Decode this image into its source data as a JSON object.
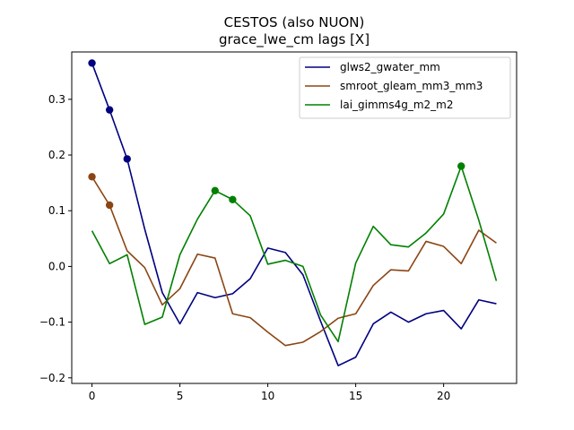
{
  "chart_data": {
    "type": "line",
    "title": "CESTOS (also NUON)",
    "subtitle": "grace_lwe_cm lags [X]",
    "xlabel": "",
    "ylabel": "",
    "xlim": [
      -1.15,
      24.15
    ],
    "ylim": [
      -0.21,
      0.385
    ],
    "x_ticks": [
      0,
      5,
      10,
      15,
      20
    ],
    "x_tick_labels": [
      "0",
      "5",
      "10",
      "15",
      "20"
    ],
    "y_ticks": [
      -0.2,
      -0.1,
      0.0,
      0.1,
      0.2,
      0.3
    ],
    "y_tick_labels": [
      "−0.2",
      "−0.1",
      "0.0",
      "0.1",
      "0.2",
      "0.3"
    ],
    "grid": false,
    "legend_position": "upper-right",
    "x": [
      0,
      1,
      2,
      3,
      4,
      5,
      6,
      7,
      8,
      9,
      10,
      11,
      12,
      13,
      14,
      15,
      16,
      17,
      18,
      19,
      20,
      21,
      22,
      23
    ],
    "series": [
      {
        "name": "glws2_gwater_mm",
        "color": "#000080",
        "values": [
          0.365,
          0.281,
          0.193,
          0.067,
          -0.047,
          -0.103,
          -0.047,
          -0.056,
          -0.049,
          -0.022,
          0.033,
          0.025,
          -0.015,
          -0.098,
          -0.178,
          -0.163,
          -0.103,
          -0.082,
          -0.1,
          -0.085,
          -0.079,
          -0.112,
          -0.06,
          -0.067
        ],
        "highlight_x": [
          0,
          1,
          2
        ]
      },
      {
        "name": "smroot_gleam_mm3_mm3",
        "color": "#8b4513",
        "values": [
          0.161,
          0.11,
          0.028,
          -0.002,
          -0.069,
          -0.04,
          0.022,
          0.015,
          -0.085,
          -0.092,
          -0.118,
          -0.142,
          -0.136,
          -0.117,
          -0.093,
          -0.085,
          -0.034,
          -0.006,
          -0.008,
          0.045,
          0.036,
          0.005,
          0.065,
          0.042
        ],
        "highlight_x": [
          0,
          1
        ]
      },
      {
        "name": "lai_gimms4g_m2_m2",
        "color": "#008000",
        "values": [
          0.064,
          0.005,
          0.021,
          -0.104,
          -0.091,
          0.021,
          0.085,
          0.136,
          0.12,
          0.091,
          0.004,
          0.011,
          0.0,
          -0.087,
          -0.135,
          0.006,
          0.072,
          0.039,
          0.035,
          0.06,
          0.094,
          0.18,
          0.083,
          -0.026
        ],
        "highlight_x": [
          7,
          8,
          21
        ]
      }
    ]
  }
}
